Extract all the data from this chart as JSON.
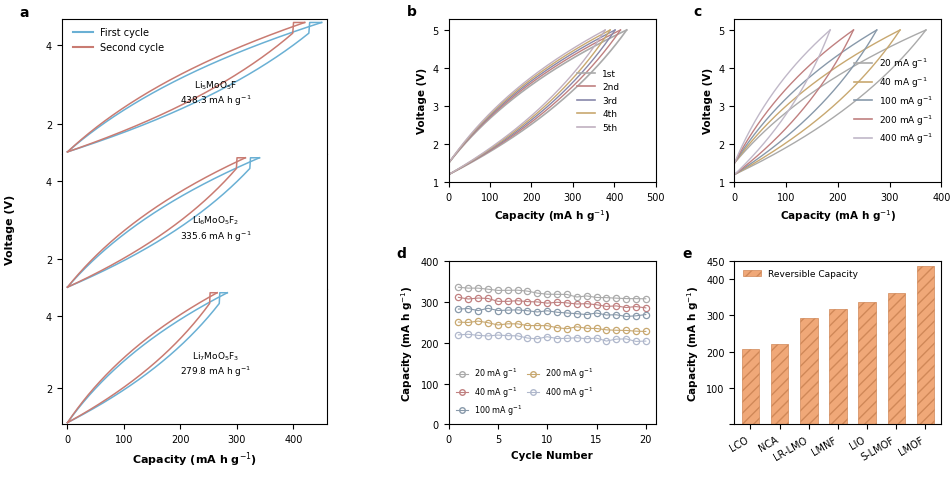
{
  "panel_a": {
    "legend_colors": [
      "#6ab0d4",
      "#c97b72"
    ],
    "legend": [
      "First cycle",
      "Second cycle"
    ],
    "annotations": [
      {
        "text": "Li$_5$MoO$_5$F\n438.3 mA h g$^{-1}$"
      },
      {
        "text": "Li$_6$MoO$_5$F$_2$\n335.6 mA h g$^{-1}$"
      },
      {
        "text": "Li$_7$MoO$_5$F$_3$\n279.8 mA h g$^{-1}$"
      }
    ],
    "loops": [
      {
        "cap1": 450,
        "cap2": 420,
        "v_lo": 1.28,
        "v_hi": 4.58
      },
      {
        "cap1": 340,
        "cap2": 315,
        "v_lo": 1.28,
        "v_hi": 4.58
      },
      {
        "cap1": 283,
        "cap2": 265,
        "v_lo": 1.05,
        "v_hi": 4.65
      }
    ]
  },
  "panel_b": {
    "legend": [
      "1st",
      "2nd",
      "3rd",
      "4th",
      "5th"
    ],
    "colors": [
      "#aaaaaa",
      "#c08080",
      "#8888aa",
      "#c8a870",
      "#c0b0c0"
    ],
    "caps": [
      430,
      415,
      402,
      390,
      378
    ],
    "xlim": [
      0,
      500
    ],
    "ylim": [
      1,
      5.3
    ]
  },
  "panel_c": {
    "legend": [
      "20 mA g$^{-1}$",
      "40 mA g$^{-1}$",
      "100 mA g$^{-1}$",
      "200 mA g$^{-1}$",
      "400 mA g$^{-1}$"
    ],
    "colors": [
      "#aaaaaa",
      "#c8a870",
      "#8899aa",
      "#c08080",
      "#c0b8c8"
    ],
    "caps": [
      370,
      320,
      275,
      230,
      185
    ],
    "xlim": [
      0,
      400
    ],
    "ylim": [
      1,
      5.3
    ]
  },
  "panel_d": {
    "legend": [
      "20 mA g$^{-1}$",
      "40 mA g$^{-1}$",
      "100 mA g$^{-1}$",
      "200 mA g$^{-1}$",
      "400 mA g$^{-1}$"
    ],
    "colors": [
      "#aaaaaa",
      "#c08080",
      "#8899aa",
      "#c8a870",
      "#b0b8cc"
    ],
    "start_caps": [
      335,
      310,
      285,
      250,
      220
    ],
    "end_caps": [
      305,
      285,
      265,
      230,
      205
    ],
    "xlim": [
      0,
      20
    ],
    "ylim": [
      0,
      400
    ]
  },
  "panel_e": {
    "categories": [
      "LCO",
      "NCA",
      "LR-LMO",
      "LMNF",
      "LIO",
      "S-LMOF",
      "LMOF"
    ],
    "values": [
      208,
      220,
      292,
      317,
      337,
      362,
      435
    ],
    "bar_color": "#f0a878",
    "ylim": [
      0,
      450
    ],
    "yticks": [
      0,
      100,
      200,
      300,
      400
    ],
    "legend_label": "Reversible Capacity"
  }
}
